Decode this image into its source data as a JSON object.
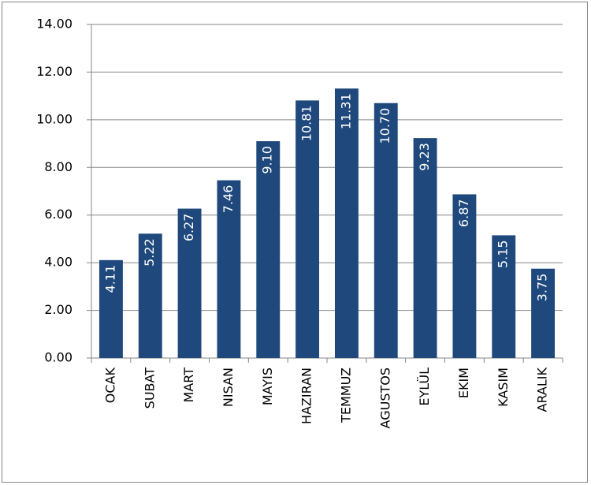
{
  "chart_data": {
    "type": "bar",
    "categories": [
      "OCAK",
      "SUBAT",
      "MART",
      "NISAN",
      "MAYIS",
      "HAZIRAN",
      "TEMMUZ",
      "AGUSTOS",
      "EYLÜL",
      "EKIM",
      "KASIM",
      "ARALIK"
    ],
    "values": [
      4.11,
      5.22,
      6.27,
      7.46,
      9.1,
      10.81,
      11.31,
      10.7,
      9.23,
      6.87,
      5.15,
      3.75
    ],
    "value_labels": [
      "4.11",
      "5.22",
      "6.27",
      "7.46",
      "9.10",
      "10.81",
      "11.31",
      "10.70",
      "9.23",
      "6.87",
      "5.15",
      "3.75"
    ],
    "color": "#1f497d",
    "ylim": [
      0,
      14
    ],
    "yticks": [
      {
        "value": 0,
        "label": "0.00"
      },
      {
        "value": 2,
        "label": "2.00"
      },
      {
        "value": 4,
        "label": "4.00"
      },
      {
        "value": 6,
        "label": "6.00"
      },
      {
        "value": 8,
        "label": "8.00"
      },
      {
        "value": 10,
        "label": "10.00"
      },
      {
        "value": 12,
        "label": "12.00"
      },
      {
        "value": 14,
        "label": "14.00"
      }
    ],
    "grid": true
  }
}
